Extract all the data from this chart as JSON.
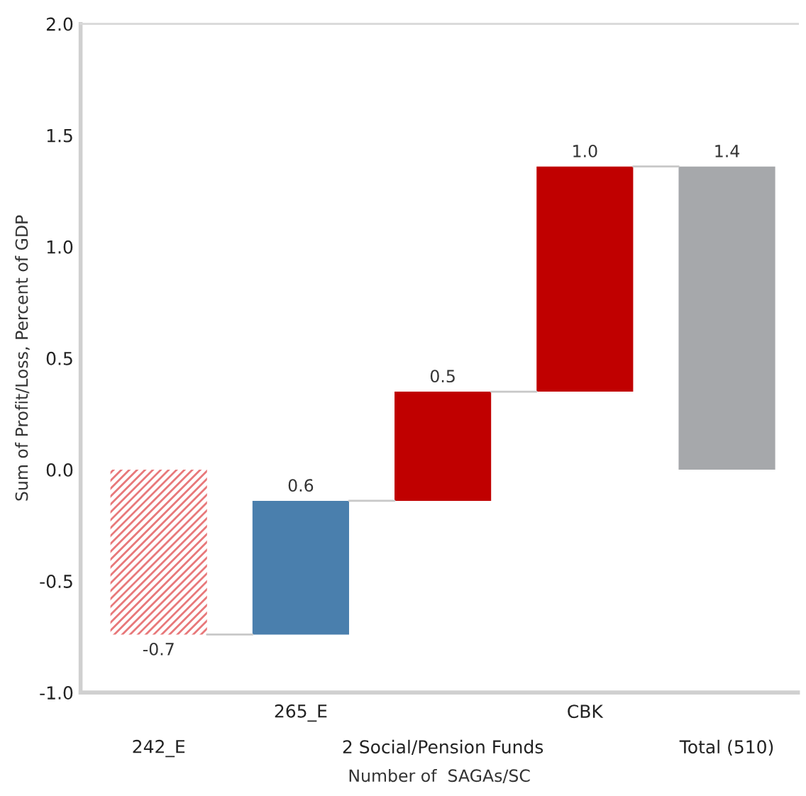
{
  "chart_data": {
    "type": "bar",
    "ylabel": "Sum of Profit/Loss, Percent of GDP",
    "xlabel": "Number of  SAGAs/SC",
    "categories": [
      "242_E",
      "265_E",
      "2 Social/Pension Funds",
      "CBK",
      "Total (510)"
    ],
    "values": [
      -0.74,
      0.6,
      0.49,
      1.01,
      1.36
    ],
    "base": [
      0,
      -0.74,
      -0.14,
      0.35,
      0
    ],
    "colors": [
      "#e8787a",
      "#4a7fad",
      "#c00000",
      "#c00000",
      "#a6a8ab"
    ],
    "value_labels": [
      "-0.7",
      "0.6",
      "0.5",
      "1.0",
      "1.4"
    ],
    "ylim": [
      -1.0,
      2.0
    ],
    "yticks": [
      {
        "value": -1.0,
        "label": "-1.0"
      },
      {
        "value": -0.5,
        "label": "-0.5"
      },
      {
        "value": 0.0,
        "label": "0.0"
      },
      {
        "value": 0.5,
        "label": "0.5"
      },
      {
        "value": 1.0,
        "label": "1.0"
      },
      {
        "value": 1.5,
        "label": "1.5"
      },
      {
        "value": 2.0,
        "label": "2.0"
      }
    ],
    "grid": false,
    "legend": false
  }
}
